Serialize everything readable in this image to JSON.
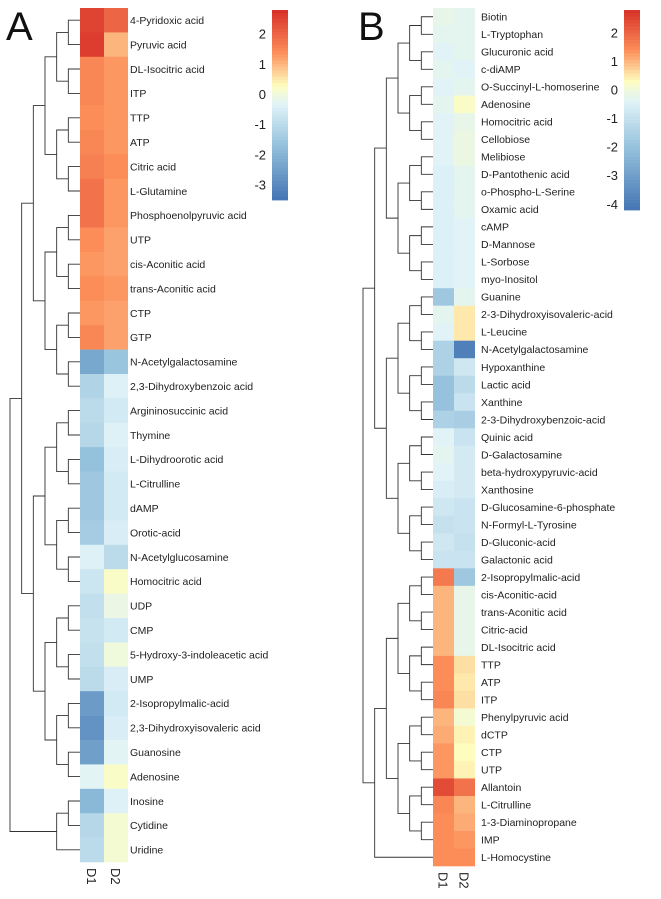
{
  "chart_data": [
    {
      "type": "heatmap",
      "panel_label": "A",
      "columns": [
        "D1",
        "D2"
      ],
      "rows": [
        "4-Pyridoxic acid",
        "Pyruvic acid",
        "DL-Isocitric acid",
        "ITP",
        "TTP",
        "ATP",
        "Citric acid",
        "L-Glutamine",
        "Phosphoenolpyruvic acid",
        "UTP",
        "cis-Aconitic acid",
        "trans-Aconitic acid",
        "CTP",
        "GTP",
        "N-Acetylgalactosamine",
        "2,3-Dihydroxybenzoic acid",
        "Argininosuccinic acid",
        "Thymine",
        "L-Dihydroorotic acid",
        "L-Citrulline",
        "dAMP",
        "Orotic-acid",
        "N-Acetylglucosamine",
        "Homocitric acid",
        "UDP",
        "CMP",
        "5-Hydroxy-3-indoleacetic acid",
        "UMP",
        "2-Isopropylmalic-acid",
        "2,3-Dihydroxyisovaleric acid",
        "Guanosine",
        "Adenosine",
        "Inosine",
        "Cytidine",
        "Uridine"
      ],
      "values": [
        [
          2.5,
          2.0
        ],
        [
          2.6,
          1.0
        ],
        [
          1.5,
          1.3
        ],
        [
          1.5,
          1.3
        ],
        [
          1.4,
          1.3
        ],
        [
          1.5,
          1.3
        ],
        [
          1.6,
          1.4
        ],
        [
          1.8,
          1.3
        ],
        [
          1.8,
          1.3
        ],
        [
          1.4,
          1.2
        ],
        [
          1.3,
          1.2
        ],
        [
          1.4,
          1.3
        ],
        [
          1.3,
          1.2
        ],
        [
          1.5,
          1.2
        ],
        [
          -2.3,
          -1.6
        ],
        [
          -1.2,
          -0.4
        ],
        [
          -1.0,
          -0.6
        ],
        [
          -1.1,
          -0.4
        ],
        [
          -1.7,
          -0.5
        ],
        [
          -1.5,
          -0.6
        ],
        [
          -1.5,
          -0.6
        ],
        [
          -1.4,
          -0.5
        ],
        [
          -0.4,
          -1.0
        ],
        [
          -0.7,
          0.2
        ],
        [
          -0.9,
          -0.1
        ],
        [
          -0.8,
          -0.6
        ],
        [
          -0.9,
          0.0
        ],
        [
          -1.0,
          -0.5
        ],
        [
          -2.6,
          -0.6
        ],
        [
          -2.8,
          -0.5
        ],
        [
          -2.5,
          -0.3
        ],
        [
          -0.3,
          0.2
        ],
        [
          -1.9,
          -0.4
        ],
        [
          -1.1,
          0.1
        ],
        [
          -1.0,
          0.1
        ]
      ],
      "color_scale": {
        "min": -3.5,
        "max": 2.8,
        "ticks": [
          2,
          1,
          0,
          -1,
          -2,
          -3
        ]
      }
    },
    {
      "type": "heatmap",
      "panel_label": "B",
      "columns": [
        "D1",
        "D2"
      ],
      "rows": [
        "Biotin",
        "L-Tryptophan",
        "Glucuronic acid",
        "c-diAMP",
        "O-Succinyl-L-homoserine",
        "Adenosine",
        "Homocitric acid",
        "Cellobiose",
        "Melibiose",
        "D-Pantothenic acid",
        "o-Phospho-L-Serine",
        "Oxamic acid",
        "cAMP",
        "D-Mannose",
        "L-Sorbose",
        "myo-Inositol",
        "Guanine",
        "2-3-Dihydroxyisovaleric-acid",
        "L-Leucine",
        "N-Acetylgalactosamine",
        "Hypoxanthine",
        "Lactic acid",
        "Xanthine",
        "2-3-Dihydroxybenzoic-acid",
        "Quinic acid",
        "D-Galactosamine",
        "beta-hydroxypyruvic-acid",
        "Xanthosine",
        "D-Glucosamine-6-phosphate",
        "N-Formyl-L-Tyrosine",
        "D-Gluconic-acid",
        "Galactonic acid",
        "2-Isopropylmalic-acid",
        "cis-Aconitic-acid",
        "trans-Aconitic acid",
        "Citric-acid",
        "DL-Isocitric acid",
        "TTP",
        "ATP",
        "ITP",
        "Phenylpyruvic acid",
        "dCTP",
        "CTP",
        "UTP",
        "Allantoin",
        "L-Citrulline",
        "1-3-Diaminopropane",
        "IMP",
        "L-Homocystine"
      ],
      "values": [
        [
          -0.2,
          -0.3
        ],
        [
          -0.3,
          -0.3
        ],
        [
          -0.4,
          -0.3
        ],
        [
          -0.3,
          -0.4
        ],
        [
          -0.4,
          -0.3
        ],
        [
          -0.3,
          0.2
        ],
        [
          -0.4,
          -0.2
        ],
        [
          -0.4,
          -0.1
        ],
        [
          -0.4,
          -0.1
        ],
        [
          -0.5,
          -0.3
        ],
        [
          -0.5,
          -0.3
        ],
        [
          -0.5,
          -0.3
        ],
        [
          -0.5,
          -0.4
        ],
        [
          -0.5,
          -0.4
        ],
        [
          -0.5,
          -0.4
        ],
        [
          -0.5,
          -0.4
        ],
        [
          -1.8,
          -0.3
        ],
        [
          -0.3,
          0.5
        ],
        [
          -0.4,
          0.5
        ],
        [
          -1.5,
          -3.9
        ],
        [
          -1.5,
          -0.8
        ],
        [
          -2.0,
          -1.2
        ],
        [
          -2.0,
          -0.9
        ],
        [
          -1.5,
          -1.6
        ],
        [
          -0.4,
          -0.9
        ],
        [
          -0.3,
          -0.7
        ],
        [
          -0.4,
          -0.7
        ],
        [
          -0.6,
          -0.7
        ],
        [
          -0.8,
          -0.9
        ],
        [
          -1.0,
          -0.9
        ],
        [
          -0.8,
          -1.0
        ],
        [
          -0.9,
          -0.9
        ],
        [
          1.7,
          -1.8
        ],
        [
          1.0,
          -0.2
        ],
        [
          1.0,
          -0.2
        ],
        [
          1.0,
          -0.2
        ],
        [
          1.0,
          -0.2
        ],
        [
          1.4,
          0.6
        ],
        [
          1.4,
          0.5
        ],
        [
          1.5,
          0.6
        ],
        [
          1.0,
          0.1
        ],
        [
          1.1,
          0.4
        ],
        [
          1.3,
          0.3
        ],
        [
          1.3,
          0.4
        ],
        [
          2.4,
          1.8
        ],
        [
          1.5,
          1.0
        ],
        [
          1.4,
          1.1
        ],
        [
          1.4,
          1.3
        ],
        [
          1.4,
          1.4
        ]
      ],
      "color_scale": {
        "min": -4.2,
        "max": 2.8,
        "ticks": [
          2,
          1,
          0,
          -1,
          -2,
          -3,
          -4
        ]
      }
    }
  ]
}
